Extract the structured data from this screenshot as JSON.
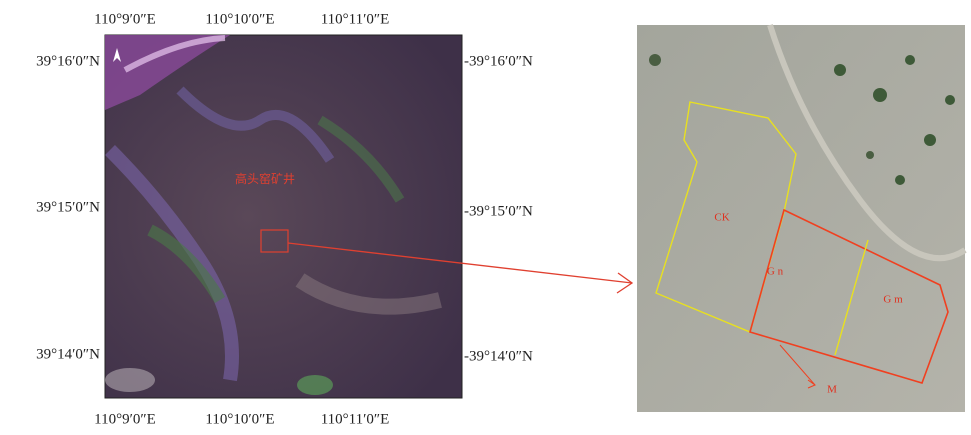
{
  "left_map": {
    "top_labels": [
      "110°9′0″E",
      "110°10′0″E",
      "110°11′0″E"
    ],
    "bottom_labels": [
      "110°9′0″E",
      "110°10′0″E",
      "110°11′0″E"
    ],
    "left_labels": [
      "39°16′0″N",
      "39°15′0″N",
      "39°14′0″N"
    ],
    "right_labels": [
      "-39°16′0″N",
      "-39°15′0″N",
      "-39°14′0″N"
    ],
    "site_label": "高头窑矿井"
  },
  "right_map": {
    "plot_labels": [
      "CK",
      "G n",
      "G m"
    ],
    "arrow_label": "M"
  }
}
